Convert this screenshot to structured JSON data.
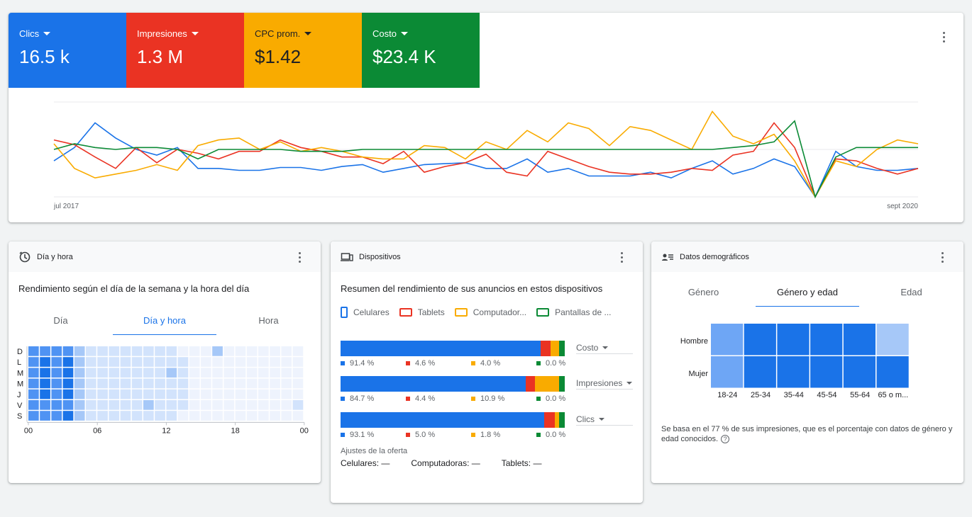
{
  "performance": {
    "metrics": [
      {
        "label": "Clics",
        "value": "16.5 k",
        "color": "#1a73e8"
      },
      {
        "label": "Impresiones",
        "value": "1.3 M",
        "color": "#ea3323"
      },
      {
        "label": "CPC prom.",
        "value": "$1.42",
        "color": "#f9ab00"
      },
      {
        "label": "Costo",
        "value": "$23.4 K",
        "color": "#0b8a35"
      }
    ],
    "x_start": "jul 2017",
    "x_end": "sept 2020"
  },
  "chart_data": {
    "type": "line",
    "x_start": "jul 2017",
    "x_end": "sept 2020",
    "series": [
      {
        "name": "Clics",
        "color": "#1a73e8",
        "values": [
          38,
          52,
          78,
          62,
          50,
          44,
          52,
          30,
          30,
          28,
          28,
          31,
          31,
          28,
          32,
          34,
          26,
          30,
          34,
          35,
          36,
          30,
          30,
          40,
          26,
          30,
          22,
          22,
          22,
          26,
          20,
          30,
          38,
          24,
          30,
          40,
          32,
          0,
          48,
          32,
          28,
          28,
          30
        ]
      },
      {
        "name": "Impresiones",
        "color": "#ea3323",
        "values": [
          60,
          55,
          42,
          30,
          52,
          36,
          50,
          46,
          40,
          48,
          48,
          60,
          52,
          48,
          42,
          42,
          35,
          48,
          26,
          32,
          36,
          45,
          26,
          22,
          48,
          40,
          32,
          26,
          24,
          24,
          26,
          30,
          28,
          44,
          48,
          78,
          52,
          0,
          40,
          38,
          30,
          24,
          30
        ]
      },
      {
        "name": "CPC prom.",
        "color": "#f9ab00",
        "values": [
          56,
          30,
          20,
          24,
          28,
          34,
          28,
          54,
          60,
          62,
          50,
          58,
          48,
          52,
          48,
          42,
          40,
          40,
          54,
          52,
          40,
          58,
          50,
          70,
          58,
          78,
          72,
          54,
          74,
          70,
          60,
          50,
          90,
          64,
          56,
          66,
          38,
          0,
          38,
          32,
          50,
          60,
          56
        ]
      },
      {
        "name": "Costo",
        "color": "#0b8a35",
        "values": [
          50,
          56,
          52,
          50,
          52,
          52,
          50,
          40,
          50,
          50,
          50,
          50,
          48,
          48,
          48,
          50,
          50,
          50,
          50,
          50,
          50,
          50,
          50,
          50,
          50,
          50,
          50,
          50,
          50,
          50,
          50,
          50,
          50,
          52,
          54,
          58,
          80,
          0,
          42,
          52,
          52,
          52,
          52
        ]
      }
    ]
  },
  "day_card": {
    "title": "Día y hora",
    "subtitle": "Rendimiento según el día de la semana y la hora del día",
    "tabs": [
      "Día",
      "Día y hora",
      "Hora"
    ],
    "active_tab": 1,
    "days": [
      "D",
      "L",
      "M",
      "M",
      "J",
      "V",
      "S"
    ],
    "hours": [
      "00",
      "06",
      "12",
      "18",
      "00"
    ],
    "intensity": [
      [
        3,
        3,
        3,
        3,
        2,
        1,
        1,
        1,
        1,
        1,
        1,
        1,
        1,
        0,
        0,
        0,
        2,
        0,
        0,
        0,
        0,
        0,
        0,
        0
      ],
      [
        3,
        4,
        3,
        4,
        2,
        1,
        1,
        1,
        1,
        1,
        1,
        1,
        1,
        1,
        0,
        0,
        0,
        0,
        0,
        0,
        0,
        0,
        0,
        0
      ],
      [
        3,
        4,
        3,
        4,
        2,
        1,
        1,
        1,
        1,
        1,
        1,
        1,
        2,
        1,
        0,
        0,
        0,
        0,
        0,
        0,
        0,
        0,
        0,
        0
      ],
      [
        3,
        4,
        3,
        4,
        2,
        1,
        1,
        1,
        1,
        1,
        1,
        1,
        1,
        1,
        0,
        0,
        0,
        0,
        0,
        0,
        0,
        0,
        0,
        0
      ],
      [
        3,
        4,
        3,
        4,
        2,
        1,
        1,
        1,
        1,
        1,
        1,
        1,
        1,
        1,
        0,
        0,
        0,
        0,
        0,
        0,
        0,
        0,
        0,
        0
      ],
      [
        3,
        3,
        3,
        3,
        2,
        1,
        1,
        1,
        1,
        1,
        2,
        1,
        1,
        1,
        0,
        0,
        0,
        0,
        0,
        0,
        0,
        0,
        0,
        1
      ],
      [
        3,
        3,
        3,
        4,
        2,
        1,
        1,
        1,
        1,
        1,
        1,
        1,
        1,
        0,
        0,
        0,
        0,
        0,
        0,
        0,
        0,
        0,
        0,
        0
      ]
    ]
  },
  "device_card": {
    "title": "Dispositivos",
    "subtitle": "Resumen del rendimiento de sus anuncios en estos dispositivos",
    "legend": [
      {
        "label": "Celulares",
        "color": "#1a73e8"
      },
      {
        "label": "Tablets",
        "color": "#ea3323"
      },
      {
        "label": "Computador...",
        "color": "#f9ab00"
      },
      {
        "label": "Pantallas de ...",
        "color": "#0b8a35"
      }
    ],
    "rows": [
      {
        "metric": "Costo",
        "values": [
          91.4,
          4.6,
          4.0,
          0.0
        ],
        "labels": [
          "91.4 %",
          "4.6 %",
          "4.0 %",
          "0.0 %"
        ]
      },
      {
        "metric": "Impresiones",
        "values": [
          84.7,
          4.4,
          10.9,
          0.0
        ],
        "labels": [
          "84.7 %",
          "4.4 %",
          "10.9 %",
          "0.0 %"
        ]
      },
      {
        "metric": "Clics",
        "values": [
          93.1,
          5.0,
          1.8,
          0.0
        ],
        "labels": [
          "93.1 %",
          "5.0 %",
          "1.8 %",
          "0.0 %"
        ]
      }
    ],
    "bid_title": "Ajustes de la oferta",
    "bid_items": [
      "Celulares: —",
      "Computadoras: —",
      "Tablets: —"
    ]
  },
  "demo_card": {
    "title": "Datos demográficos",
    "tabs": [
      "Género",
      "Género y edad",
      "Edad"
    ],
    "active_tab": 1,
    "rows": [
      "Hombre",
      "Mujer"
    ],
    "ages": [
      "18-24",
      "25-34",
      "35-44",
      "45-54",
      "55-64",
      "65 o m..."
    ],
    "intensity": [
      [
        2,
        3,
        3,
        3,
        3,
        1
      ],
      [
        2,
        3,
        3,
        3,
        3,
        3
      ]
    ],
    "footnote": "Se basa en el 77 % de sus impresiones, que es el porcentaje con datos de género y edad conocidos."
  }
}
